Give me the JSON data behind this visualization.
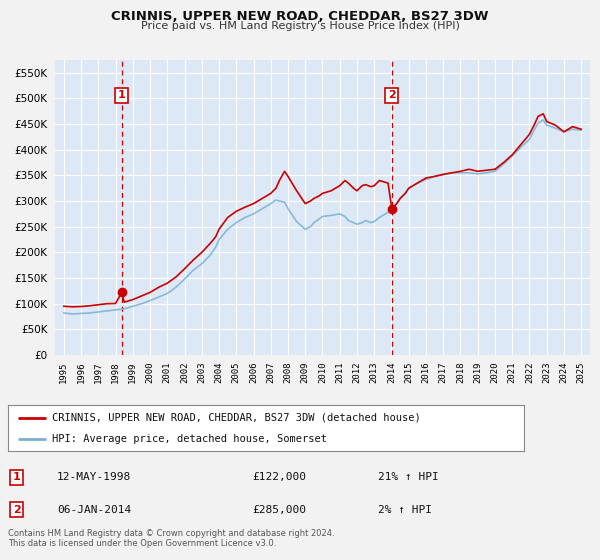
{
  "title": "CRINNIS, UPPER NEW ROAD, CHEDDAR, BS27 3DW",
  "subtitle": "Price paid vs. HM Land Registry's House Price Index (HPI)",
  "bg_color": "#f2f2f2",
  "plot_bg_color": "#dce8f5",
  "grid_color": "#ffffff",
  "sale1_date_x": 1998.36,
  "sale1_price": 122000,
  "sale2_date_x": 2014.02,
  "sale2_price": 285000,
  "ylim": [
    0,
    575000
  ],
  "yticks": [
    0,
    50000,
    100000,
    150000,
    200000,
    250000,
    300000,
    350000,
    400000,
    450000,
    500000,
    550000
  ],
  "xlim": [
    1994.5,
    2025.5
  ],
  "legend_label_red": "CRINNIS, UPPER NEW ROAD, CHEDDAR, BS27 3DW (detached house)",
  "legend_label_blue": "HPI: Average price, detached house, Somerset",
  "annotation1_date": "12-MAY-1998",
  "annotation1_price": "£122,000",
  "annotation1_hpi": "21% ↑ HPI",
  "annotation2_date": "06-JAN-2014",
  "annotation2_price": "£285,000",
  "annotation2_hpi": "2% ↑ HPI",
  "footer1": "Contains HM Land Registry data © Crown copyright and database right 2024.",
  "footer2": "This data is licensed under the Open Government Licence v3.0.",
  "red_color": "#cc0000",
  "blue_color": "#7ab0d4",
  "hpi_red": [
    [
      1995,
      95000
    ],
    [
      1995.5,
      94000
    ],
    [
      1996,
      94500
    ],
    [
      1996.5,
      96000
    ],
    [
      1997,
      98000
    ],
    [
      1997.5,
      100000
    ],
    [
      1998,
      100500
    ],
    [
      1998.36,
      122000
    ],
    [
      1998.5,
      103000
    ],
    [
      1999,
      108000
    ],
    [
      1999.5,
      115000
    ],
    [
      2000,
      122000
    ],
    [
      2000.5,
      132000
    ],
    [
      2001,
      140000
    ],
    [
      2001.5,
      152000
    ],
    [
      2002,
      168000
    ],
    [
      2002.5,
      185000
    ],
    [
      2003,
      200000
    ],
    [
      2003.5,
      218000
    ],
    [
      2003.8,
      230000
    ],
    [
      2004,
      245000
    ],
    [
      2004.5,
      268000
    ],
    [
      2005,
      280000
    ],
    [
      2005.5,
      288000
    ],
    [
      2006,
      295000
    ],
    [
      2006.5,
      305000
    ],
    [
      2007,
      315000
    ],
    [
      2007.3,
      325000
    ],
    [
      2007.5,
      340000
    ],
    [
      2007.8,
      358000
    ],
    [
      2008,
      348000
    ],
    [
      2008.5,
      320000
    ],
    [
      2009,
      295000
    ],
    [
      2009.3,
      300000
    ],
    [
      2009.5,
      305000
    ],
    [
      2009.8,
      310000
    ],
    [
      2010,
      315000
    ],
    [
      2010.5,
      320000
    ],
    [
      2011,
      330000
    ],
    [
      2011.3,
      340000
    ],
    [
      2011.5,
      335000
    ],
    [
      2011.8,
      325000
    ],
    [
      2012,
      320000
    ],
    [
      2012.3,
      330000
    ],
    [
      2012.5,
      332000
    ],
    [
      2012.8,
      328000
    ],
    [
      2013,
      330000
    ],
    [
      2013.3,
      340000
    ],
    [
      2013.5,
      338000
    ],
    [
      2013.8,
      335000
    ],
    [
      2014.02,
      285000
    ],
    [
      2014.3,
      295000
    ],
    [
      2014.5,
      305000
    ],
    [
      2014.8,
      315000
    ],
    [
      2015,
      325000
    ],
    [
      2015.5,
      335000
    ],
    [
      2016,
      345000
    ],
    [
      2016.5,
      348000
    ],
    [
      2017,
      352000
    ],
    [
      2017.5,
      355000
    ],
    [
      2018,
      358000
    ],
    [
      2018.5,
      362000
    ],
    [
      2019,
      358000
    ],
    [
      2019.5,
      360000
    ],
    [
      2020,
      362000
    ],
    [
      2020.5,
      375000
    ],
    [
      2021,
      390000
    ],
    [
      2021.5,
      410000
    ],
    [
      2022,
      430000
    ],
    [
      2022.3,
      450000
    ],
    [
      2022.5,
      465000
    ],
    [
      2022.8,
      470000
    ],
    [
      2023,
      455000
    ],
    [
      2023.5,
      448000
    ],
    [
      2024,
      435000
    ],
    [
      2024.5,
      445000
    ],
    [
      2025,
      440000
    ]
  ],
  "hpi_blue": [
    [
      1995,
      82000
    ],
    [
      1995.5,
      80000
    ],
    [
      1996,
      81000
    ],
    [
      1996.5,
      82000
    ],
    [
      1997,
      84000
    ],
    [
      1997.5,
      86000
    ],
    [
      1998,
      88000
    ],
    [
      1998.5,
      90000
    ],
    [
      1999,
      95000
    ],
    [
      1999.5,
      100000
    ],
    [
      2000,
      106000
    ],
    [
      2000.5,
      113000
    ],
    [
      2001,
      120000
    ],
    [
      2001.5,
      132000
    ],
    [
      2002,
      148000
    ],
    [
      2002.5,
      165000
    ],
    [
      2003,
      178000
    ],
    [
      2003.5,
      195000
    ],
    [
      2003.8,
      210000
    ],
    [
      2004,
      225000
    ],
    [
      2004.5,
      245000
    ],
    [
      2005,
      258000
    ],
    [
      2005.5,
      268000
    ],
    [
      2006,
      275000
    ],
    [
      2006.5,
      285000
    ],
    [
      2007,
      295000
    ],
    [
      2007.3,
      302000
    ],
    [
      2007.5,
      300000
    ],
    [
      2007.8,
      298000
    ],
    [
      2008,
      285000
    ],
    [
      2008.5,
      260000
    ],
    [
      2009,
      245000
    ],
    [
      2009.3,
      250000
    ],
    [
      2009.5,
      258000
    ],
    [
      2009.8,
      265000
    ],
    [
      2010,
      270000
    ],
    [
      2010.5,
      272000
    ],
    [
      2011,
      275000
    ],
    [
      2011.3,
      270000
    ],
    [
      2011.5,
      262000
    ],
    [
      2011.8,
      258000
    ],
    [
      2012,
      255000
    ],
    [
      2012.3,
      258000
    ],
    [
      2012.5,
      262000
    ],
    [
      2012.8,
      258000
    ],
    [
      2013,
      260000
    ],
    [
      2013.3,
      268000
    ],
    [
      2013.5,
      272000
    ],
    [
      2013.8,
      278000
    ],
    [
      2014,
      285000
    ],
    [
      2014.3,
      295000
    ],
    [
      2014.5,
      305000
    ],
    [
      2014.8,
      315000
    ],
    [
      2015,
      325000
    ],
    [
      2015.5,
      335000
    ],
    [
      2016,
      342000
    ],
    [
      2016.5,
      348000
    ],
    [
      2017,
      352000
    ],
    [
      2017.5,
      355000
    ],
    [
      2018,
      355000
    ],
    [
      2018.5,
      355000
    ],
    [
      2019,
      353000
    ],
    [
      2019.5,
      355000
    ],
    [
      2020,
      358000
    ],
    [
      2020.5,
      372000
    ],
    [
      2021,
      388000
    ],
    [
      2021.5,
      405000
    ],
    [
      2022,
      420000
    ],
    [
      2022.3,
      440000
    ],
    [
      2022.5,
      452000
    ],
    [
      2022.8,
      458000
    ],
    [
      2023,
      448000
    ],
    [
      2023.5,
      442000
    ],
    [
      2024,
      435000
    ],
    [
      2024.5,
      440000
    ],
    [
      2025,
      438000
    ]
  ]
}
